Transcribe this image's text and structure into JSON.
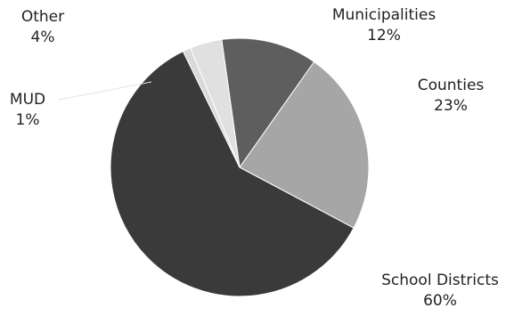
{
  "chart_data": {
    "type": "pie",
    "title": "",
    "start_angle_deg": 352,
    "direction": "clockwise",
    "slices": [
      {
        "label": "Municipalities",
        "value": 12,
        "value_label": "12%",
        "color": "#5e5e5e"
      },
      {
        "label": "Counties",
        "value": 23,
        "value_label": "23%",
        "color": "#a6a6a6"
      },
      {
        "label": "School Districts",
        "value": 60,
        "value_label": "60%",
        "color": "#3a3a3a"
      },
      {
        "label": "MUD",
        "value": 1,
        "value_label": "1%",
        "color": "#d9d9d9"
      },
      {
        "label": "Other",
        "value": 4,
        "value_label": "4%",
        "color": "#e0e0e0"
      }
    ],
    "legend": "none"
  }
}
